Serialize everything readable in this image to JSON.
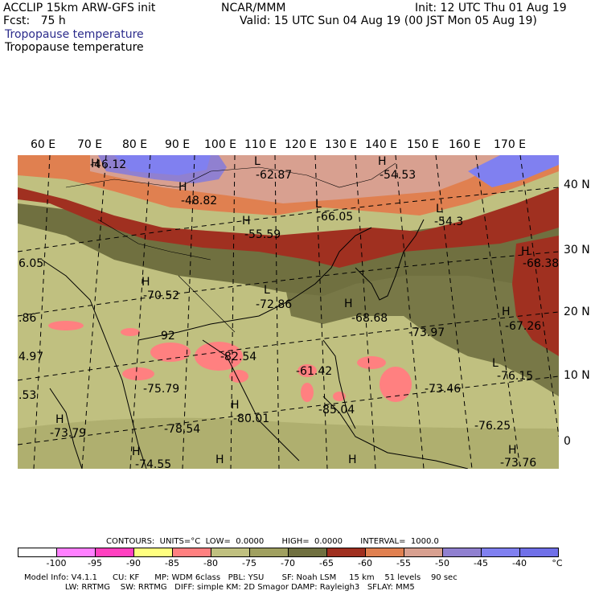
{
  "header": {
    "model": "ACCLIP 15km ARW-GFS init",
    "org": "NCAR/MMM",
    "init": "Init: 12 UTC Thu 01 Aug 19",
    "fcst": "Fcst:   75 h",
    "valid": "Valid: 15 UTC Sun 04 Aug 19 (00 JST Mon 05 Aug 19)",
    "field_title_1": "Tropopause temperature",
    "field_title_2": "Tropopause temperature"
  },
  "map": {
    "lon_labels": [
      "60 E",
      "70 E",
      "80 E",
      "90 E",
      "100 E",
      "110 E",
      "120 E",
      "130 E",
      "140 E",
      "150 E",
      "160 E",
      "170 E"
    ],
    "lat_labels": [
      "40 N",
      "30 N",
      "20 N",
      "10 N",
      "0"
    ],
    "extrema": [
      {
        "type": "H",
        "value": "-46.12"
      },
      {
        "type": "L",
        "value": "-62.87"
      },
      {
        "type": "H",
        "value": "-54.53"
      },
      {
        "type": "H",
        "value": "-48.82"
      },
      {
        "type": "L",
        "value": "-66.05"
      },
      {
        "type": "H",
        "value": "-55.59"
      },
      {
        "type": "L",
        "value": "-54.3"
      },
      {
        "type": "H",
        "value": "-68.38"
      },
      {
        "type": "",
        "value": "6.05"
      },
      {
        "type": "H",
        "value": "-70.52"
      },
      {
        "type": "L",
        "value": "-72.86"
      },
      {
        "type": "H",
        "value": "-68.68"
      },
      {
        "type": "H",
        "value": "-67.26"
      },
      {
        "type": "",
        "value": ".86"
      },
      {
        "type": "",
        "value": "-73.97"
      },
      {
        "type": "",
        "value": "92"
      },
      {
        "type": "",
        "value": "-82.54"
      },
      {
        "type": "",
        "value": "4.97"
      },
      {
        "type": "L",
        "value": "-76.15"
      },
      {
        "type": "",
        "value": "-61.42"
      },
      {
        "type": "",
        "value": "-75.79"
      },
      {
        "type": "",
        "value": "-73.46"
      },
      {
        "type": "",
        "value": ".53"
      },
      {
        "type": "H",
        "value": "-80.01"
      },
      {
        "type": "",
        "value": "-85.04"
      },
      {
        "type": "H",
        "value": "-73.79"
      },
      {
        "type": "",
        "value": "-78.54"
      },
      {
        "type": "",
        "value": "-76.25"
      },
      {
        "type": "H",
        "value": "-74.55"
      },
      {
        "type": "H",
        "value": ""
      },
      {
        "type": "H",
        "value": ""
      },
      {
        "type": "H",
        "value": "-73.76"
      }
    ]
  },
  "contours_line": "CONTOURS:  UNITS=°C  LOW=  0.0000       HIGH=  0.0000       INTERVAL=  1000.0",
  "colorbar": {
    "colors": [
      "#ffffff",
      "#ff80ff",
      "#ff40c0",
      "#ffff80",
      "#ff8080",
      "#c0c080",
      "#a0a060",
      "#707040",
      "#a03020",
      "#e08050",
      "#d8a090",
      "#9080d0",
      "#8080f0",
      "#7070e8"
    ],
    "labels": [
      "-100",
      "-95",
      "-90",
      "-85",
      "-80",
      "-75",
      "-70",
      "-65",
      "-60",
      "-55",
      "-50",
      "-45",
      "-40",
      "°C"
    ]
  },
  "footer": {
    "line1": "Model Info: V4.1.1      CU: KF      MP: WDM 6class   PBL: YSU       SF: Noah LSM     15 km    51 levels    90 sec",
    "line2": "                LW: RRTMG    SW: RRTMG   DIFF: simple KM: 2D Smagor DAMP: Rayleigh3   SFLAY: MM5"
  }
}
